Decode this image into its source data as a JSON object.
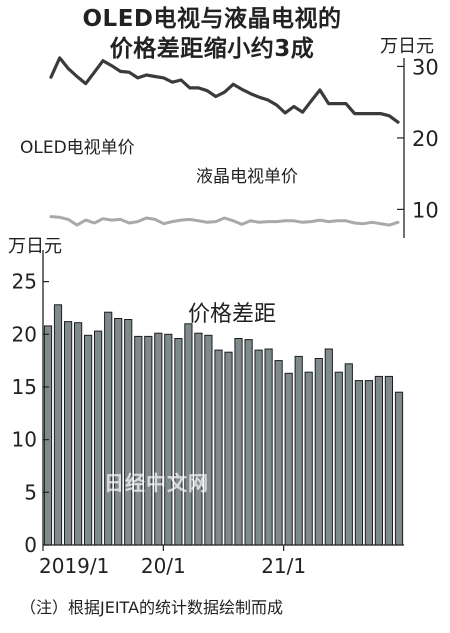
{
  "title": {
    "line1": "OLED电视与液晶电视的",
    "line2": "价格差距缩小约3成"
  },
  "note": "（注）根据JEITA的统计数据绘制而成",
  "watermark": "日经中文网",
  "colors": {
    "line": "#3b3b3b",
    "lcd_line": "#a9a9a9",
    "bar_fill": "#7f8a8c",
    "bar_edge": "#1e1e1e"
  },
  "chart_data": [
    {
      "type": "line",
      "unit": "万日元",
      "ylim": [
        6,
        33
      ],
      "yticks": [
        10,
        20,
        30
      ],
      "axis_position": "right",
      "grid": false,
      "series": [
        {
          "name": "OLED电视单价",
          "values": [
            28.5,
            31.2,
            29.7,
            28.6,
            27.6,
            29.2,
            30.8,
            30.1,
            29.3,
            29.2,
            28.4,
            28.8,
            28.6,
            28.4,
            27.8,
            28.1,
            27.0,
            27.0,
            26.6,
            25.8,
            26.4,
            27.5,
            26.8,
            26.2,
            25.7,
            25.3,
            24.6,
            23.5,
            24.4,
            23.6,
            25.2,
            26.7,
            24.8,
            24.8,
            24.8,
            23.4,
            23.4,
            23.4,
            23.4,
            23.1,
            22.2
          ]
        },
        {
          "name": "液晶电视单价",
          "values": [
            9.0,
            8.9,
            8.6,
            7.8,
            8.5,
            8.1,
            8.7,
            8.5,
            8.6,
            8.1,
            8.3,
            8.8,
            8.6,
            8.0,
            8.3,
            8.5,
            8.6,
            8.4,
            8.2,
            8.3,
            8.8,
            8.4,
            7.9,
            8.4,
            8.2,
            8.3,
            8.3,
            8.4,
            8.4,
            8.2,
            8.3,
            8.5,
            8.3,
            8.4,
            8.4,
            8.1,
            8.0,
            8.2,
            8.0,
            7.8,
            8.2
          ]
        }
      ]
    },
    {
      "type": "bar",
      "title": "价格差距",
      "unit": "万日元",
      "ylim": [
        0,
        28
      ],
      "yticks": [
        0,
        5,
        10,
        15,
        20,
        25
      ],
      "xtick_labels": [
        "2019/1",
        "20/1",
        "21/1"
      ],
      "xtick_positions": [
        0,
        12,
        24
      ],
      "grid": false,
      "values": [
        20.8,
        22.8,
        21.2,
        21.1,
        19.9,
        20.3,
        22.1,
        21.5,
        21.4,
        19.8,
        19.8,
        20.1,
        20.0,
        19.6,
        21.0,
        20.1,
        19.9,
        18.5,
        18.3,
        19.6,
        19.5,
        18.5,
        18.6,
        17.5,
        16.3,
        17.9,
        16.4,
        17.7,
        18.6,
        16.4,
        17.2,
        15.6,
        15.6,
        16.0,
        16.0,
        14.5
      ]
    }
  ]
}
